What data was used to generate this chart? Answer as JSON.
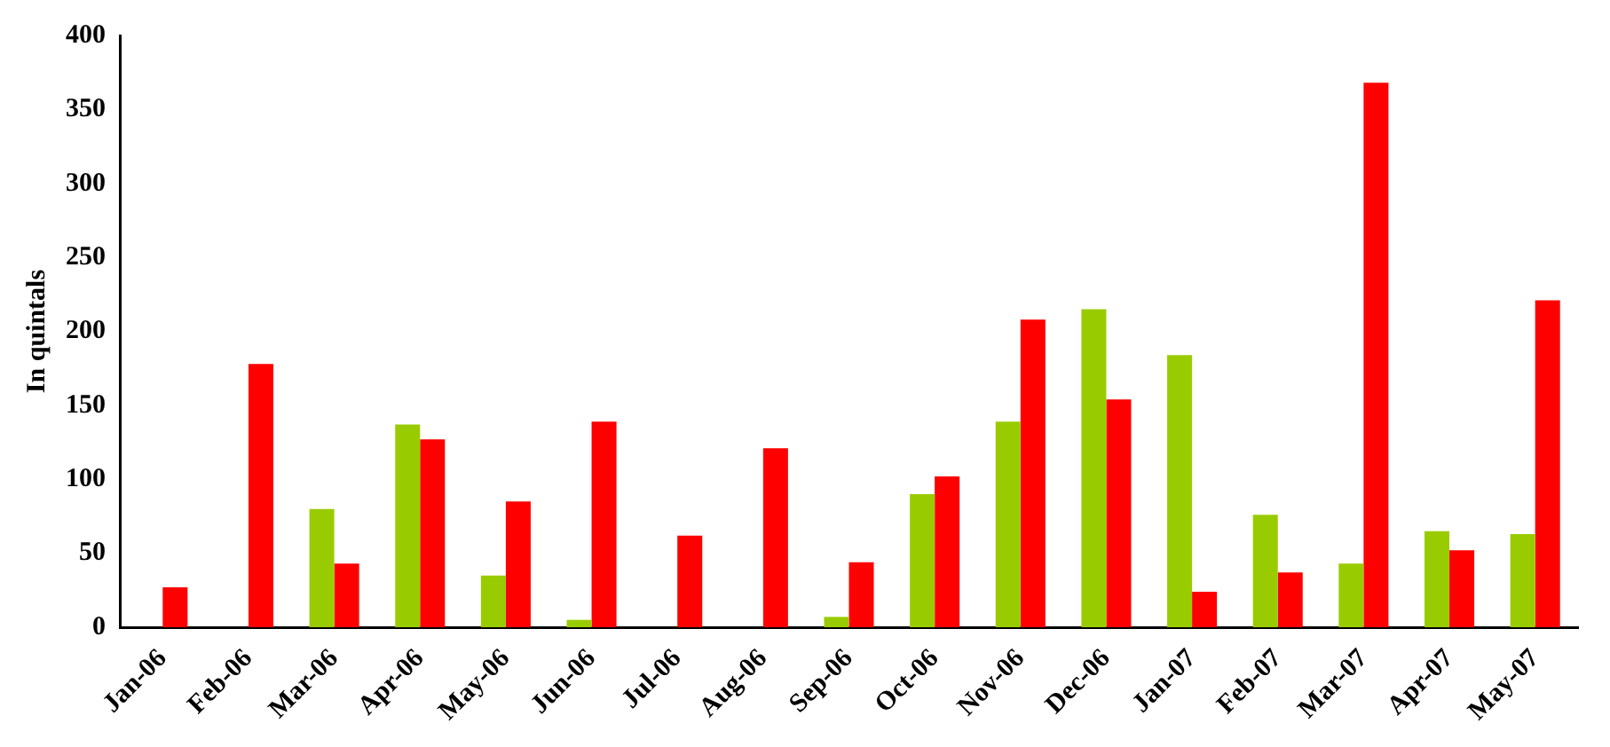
{
  "chart_data": {
    "type": "bar",
    "ylabel": "In quintals",
    "categories": [
      "Jan-06",
      "Feb-06",
      "Mar-06",
      "Apr-06",
      "May-06",
      "Jun-06",
      "Jul-06",
      "Aug-06",
      "Sep-06",
      "Oct-06",
      "Nov-06",
      "Dec-06",
      "Jan-07",
      "Feb-07",
      "Mar-07",
      "Apr-07",
      "May-07"
    ],
    "series": [
      {
        "color": "#99cc00",
        "values": [
          null,
          null,
          80,
          137,
          35,
          5,
          null,
          null,
          7,
          90,
          139,
          215,
          184,
          76,
          43,
          65,
          63
        ]
      },
      {
        "color": "#ff0000",
        "values": [
          27,
          178,
          43,
          127,
          85,
          139,
          62,
          121,
          44,
          102,
          208,
          154,
          24,
          37,
          368,
          52,
          221
        ]
      }
    ],
    "ylim": [
      0,
      400
    ],
    "yticks": [
      0,
      50,
      100,
      150,
      200,
      250,
      300,
      350,
      400
    ],
    "grid": false,
    "legend": false
  }
}
